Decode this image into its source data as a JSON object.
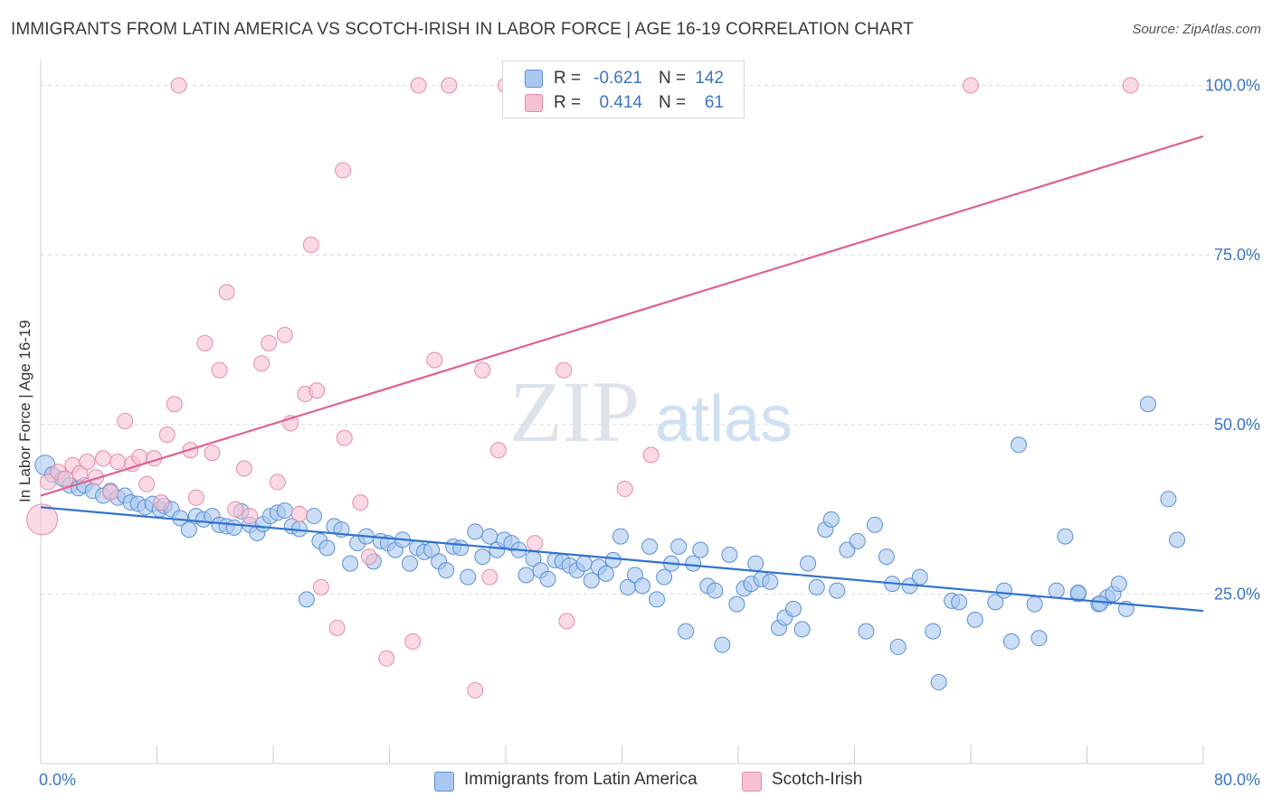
{
  "title": "IMMIGRANTS FROM LATIN AMERICA VS SCOTCH-IRISH IN LABOR FORCE | AGE 16-19 CORRELATION CHART",
  "source": "Source: ZipAtlas.com",
  "legend": {
    "rows": [
      {
        "r_label": "R =",
        "r_value": "-0.621",
        "n_label": "N =",
        "n_value": "142"
      },
      {
        "r_label": "R =",
        "r_value": "0.414",
        "n_label": "N =",
        "n_value": "61"
      }
    ]
  },
  "bottom_legend": [
    "Immigrants from Latin America",
    "Scotch-Irish"
  ],
  "colors": {
    "blue_fill": "#a9c8ef",
    "blue_stroke": "#5b8fd6",
    "blue_line": "#2f72d0",
    "pink_fill": "#f6c2d2",
    "pink_stroke": "#e88aa8",
    "pink_line": "#e0628c",
    "tick_label": "#3a75c4",
    "grid": "#d9d9d9",
    "watermark": "#dde3ea"
  },
  "watermark": {
    "zip": "ZIP",
    "atlas": "atlas"
  },
  "chart_data": {
    "type": "scatter",
    "title": "IMMIGRANTS FROM LATIN AMERICA VS SCOTCH-IRISH IN LABOR FORCE | AGE 16-19 CORRELATION CHART",
    "xlabel": "",
    "ylabel": "In Labor Force | Age 16-19",
    "xlim": [
      0,
      80
    ],
    "ylim": [
      0,
      103
    ],
    "x_tick_labels": [
      "0.0%",
      "80.0%"
    ],
    "y_ticks": [
      25,
      50,
      75,
      100
    ],
    "y_tick_labels": [
      "25.0%",
      "50.0%",
      "75.0%",
      "100.0%"
    ],
    "grid": "horizontal dashed",
    "legend_position": "top-center",
    "series": [
      {
        "name": "Immigrants from Latin America",
        "trend": {
          "x": [
            0,
            80
          ],
          "y": [
            37.8,
            22.5
          ]
        },
        "points": [
          [
            0.3,
            44.0
          ],
          [
            0.8,
            42.6
          ],
          [
            1.5,
            42.0
          ],
          [
            2.0,
            41.0
          ],
          [
            2.6,
            40.6
          ],
          [
            3.0,
            41.0
          ],
          [
            3.6,
            40.2
          ],
          [
            4.3,
            39.5
          ],
          [
            4.8,
            40.2
          ],
          [
            5.3,
            39.2
          ],
          [
            5.8,
            39.5
          ],
          [
            6.2,
            38.5
          ],
          [
            6.7,
            38.3
          ],
          [
            7.2,
            37.8
          ],
          [
            7.7,
            38.3
          ],
          [
            8.2,
            37.5
          ],
          [
            8.5,
            38.0
          ],
          [
            9.0,
            37.5
          ],
          [
            9.6,
            36.2
          ],
          [
            10.2,
            34.5
          ],
          [
            10.7,
            36.5
          ],
          [
            11.2,
            36.0
          ],
          [
            11.8,
            36.5
          ],
          [
            12.3,
            35.2
          ],
          [
            12.8,
            35.0
          ],
          [
            13.3,
            34.8
          ],
          [
            13.8,
            37.2
          ],
          [
            14.4,
            35.2
          ],
          [
            14.9,
            34.0
          ],
          [
            15.3,
            35.3
          ],
          [
            15.8,
            36.5
          ],
          [
            16.3,
            37.0
          ],
          [
            16.8,
            37.3
          ],
          [
            17.3,
            35.0
          ],
          [
            17.8,
            34.6
          ],
          [
            18.3,
            24.2
          ],
          [
            18.8,
            36.5
          ],
          [
            19.2,
            32.8
          ],
          [
            19.7,
            31.8
          ],
          [
            20.2,
            35.0
          ],
          [
            20.7,
            34.5
          ],
          [
            21.3,
            29.5
          ],
          [
            21.8,
            32.5
          ],
          [
            22.4,
            33.5
          ],
          [
            22.9,
            29.8
          ],
          [
            23.4,
            32.8
          ],
          [
            23.9,
            32.5
          ],
          [
            24.4,
            31.5
          ],
          [
            24.9,
            33.0
          ],
          [
            25.4,
            29.5
          ],
          [
            25.9,
            31.8
          ],
          [
            26.4,
            31.2
          ],
          [
            26.9,
            31.5
          ],
          [
            27.4,
            29.8
          ],
          [
            27.9,
            28.5
          ],
          [
            28.4,
            32.0
          ],
          [
            28.9,
            31.8
          ],
          [
            29.4,
            27.5
          ],
          [
            29.9,
            34.2
          ],
          [
            30.4,
            30.5
          ],
          [
            30.9,
            33.5
          ],
          [
            31.4,
            31.5
          ],
          [
            31.9,
            33.0
          ],
          [
            32.4,
            32.5
          ],
          [
            32.9,
            31.5
          ],
          [
            33.4,
            27.8
          ],
          [
            33.9,
            30.2
          ],
          [
            34.4,
            28.5
          ],
          [
            34.9,
            27.2
          ],
          [
            35.4,
            30.0
          ],
          [
            35.9,
            29.8
          ],
          [
            36.4,
            29.2
          ],
          [
            36.9,
            28.5
          ],
          [
            37.4,
            29.5
          ],
          [
            37.9,
            27.0
          ],
          [
            38.4,
            29.0
          ],
          [
            38.9,
            28.0
          ],
          [
            39.4,
            30.0
          ],
          [
            39.9,
            33.5
          ],
          [
            40.4,
            26.0
          ],
          [
            40.9,
            27.8
          ],
          [
            41.4,
            26.2
          ],
          [
            41.9,
            32.0
          ],
          [
            42.4,
            24.2
          ],
          [
            42.9,
            27.5
          ],
          [
            43.4,
            29.5
          ],
          [
            43.9,
            32.0
          ],
          [
            44.4,
            19.5
          ],
          [
            44.9,
            29.5
          ],
          [
            45.4,
            31.5
          ],
          [
            45.9,
            26.2
          ],
          [
            46.4,
            25.5
          ],
          [
            46.9,
            17.5
          ],
          [
            47.4,
            30.8
          ],
          [
            47.9,
            23.5
          ],
          [
            48.4,
            25.8
          ],
          [
            48.9,
            26.5
          ],
          [
            49.2,
            29.5
          ],
          [
            49.6,
            27.2
          ],
          [
            50.2,
            26.8
          ],
          [
            50.8,
            20.0
          ],
          [
            51.2,
            21.5
          ],
          [
            51.8,
            22.8
          ],
          [
            52.4,
            19.8
          ],
          [
            52.8,
            29.5
          ],
          [
            53.4,
            26.0
          ],
          [
            54.0,
            34.5
          ],
          [
            54.4,
            36.0
          ],
          [
            54.8,
            25.5
          ],
          [
            55.5,
            31.5
          ],
          [
            56.2,
            32.8
          ],
          [
            56.8,
            19.5
          ],
          [
            57.4,
            35.2
          ],
          [
            58.2,
            30.5
          ],
          [
            58.6,
            26.5
          ],
          [
            59.0,
            17.2
          ],
          [
            59.8,
            26.2
          ],
          [
            60.5,
            27.5
          ],
          [
            61.4,
            19.5
          ],
          [
            61.8,
            12.0
          ],
          [
            62.7,
            24.0
          ],
          [
            63.2,
            23.8
          ],
          [
            64.3,
            21.2
          ],
          [
            65.7,
            23.8
          ],
          [
            66.3,
            25.5
          ],
          [
            66.8,
            18.0
          ],
          [
            67.3,
            47.0
          ],
          [
            68.4,
            23.5
          ],
          [
            68.7,
            18.5
          ],
          [
            69.9,
            25.5
          ],
          [
            70.5,
            33.5
          ],
          [
            71.4,
            25.0
          ],
          [
            72.8,
            23.5
          ],
          [
            73.4,
            24.5
          ],
          [
            73.8,
            25.0
          ],
          [
            74.2,
            26.5
          ],
          [
            74.7,
            22.8
          ],
          [
            76.2,
            53.0
          ],
          [
            77.6,
            39.0
          ],
          [
            78.2,
            33.0
          ],
          [
            71.4,
            25.2
          ],
          [
            72.9,
            23.6
          ]
        ]
      },
      {
        "name": "Scotch-Irish",
        "trend": {
          "x": [
            0,
            80
          ],
          "y": [
            39.5,
            92.5
          ]
        },
        "points": [
          [
            0.1,
            36.0
          ],
          [
            0.5,
            41.5
          ],
          [
            1.2,
            43.0
          ],
          [
            1.7,
            42.0
          ],
          [
            2.2,
            44.0
          ],
          [
            2.7,
            42.8
          ],
          [
            3.2,
            44.5
          ],
          [
            3.8,
            42.2
          ],
          [
            4.3,
            45.0
          ],
          [
            4.8,
            40.0
          ],
          [
            5.3,
            44.5
          ],
          [
            5.8,
            50.5
          ],
          [
            6.3,
            44.2
          ],
          [
            6.8,
            45.2
          ],
          [
            7.3,
            41.2
          ],
          [
            7.8,
            45.0
          ],
          [
            8.3,
            38.5
          ],
          [
            8.7,
            48.5
          ],
          [
            9.2,
            53.0
          ],
          [
            10.3,
            46.2
          ],
          [
            10.7,
            39.2
          ],
          [
            11.3,
            62.0
          ],
          [
            11.8,
            45.8
          ],
          [
            12.3,
            58.0
          ],
          [
            12.8,
            69.5
          ],
          [
            13.4,
            37.5
          ],
          [
            14.0,
            43.5
          ],
          [
            14.4,
            36.5
          ],
          [
            15.2,
            59.0
          ],
          [
            15.7,
            62.0
          ],
          [
            16.3,
            41.5
          ],
          [
            16.8,
            63.2
          ],
          [
            17.2,
            50.2
          ],
          [
            17.8,
            36.8
          ],
          [
            18.2,
            54.5
          ],
          [
            18.6,
            76.5
          ],
          [
            19.0,
            55.0
          ],
          [
            19.3,
            26.0
          ],
          [
            20.4,
            20.0
          ],
          [
            20.8,
            87.5
          ],
          [
            20.9,
            48.0
          ],
          [
            22.0,
            38.5
          ],
          [
            22.6,
            30.5
          ],
          [
            23.8,
            15.5
          ],
          [
            25.6,
            18.0
          ],
          [
            26.0,
            100.0
          ],
          [
            27.1,
            59.5
          ],
          [
            28.1,
            100.0
          ],
          [
            29.9,
            10.8
          ],
          [
            30.4,
            58.0
          ],
          [
            30.9,
            27.5
          ],
          [
            31.5,
            46.2
          ],
          [
            32.0,
            100.0
          ],
          [
            34.0,
            32.5
          ],
          [
            36.0,
            58.0
          ],
          [
            36.2,
            21.0
          ],
          [
            64.0,
            100.0
          ],
          [
            75.0,
            100.0
          ],
          [
            9.5,
            100.0
          ],
          [
            40.2,
            40.5
          ],
          [
            42.0,
            45.5
          ]
        ]
      }
    ]
  }
}
